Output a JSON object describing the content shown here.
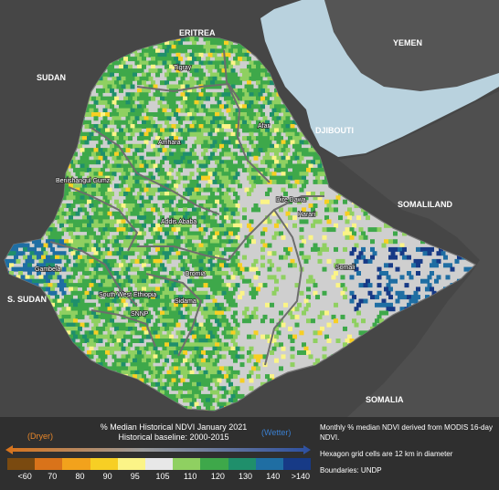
{
  "map": {
    "country_labels": {
      "eritrea": "ERITREA",
      "yemen": "YEMEN",
      "sudan": "SUDAN",
      "djibouti": "DJIBOUTI",
      "somaliland": "SOMALILAND",
      "s_sudan": "S. SUDAN",
      "somalia": "SOMALIA"
    },
    "region_labels": {
      "tigray": "Tigray",
      "afar": "Afar",
      "amhara": "Amhara",
      "benishangul": "Benishangul Gumz",
      "dire_dawa": "Dire Dawa",
      "harari": "Harari",
      "addis": "Addis Ababa",
      "gambela": "Gambela",
      "oromia": "Oromia",
      "somali": "Somali",
      "south_west": "South West Ethiopia",
      "sidama": "Sidama",
      "snnp": "SNNP"
    },
    "colors": {
      "land_other": "#4a4a4a",
      "water": "#b9d2de",
      "ethiopia_base": "#cfcfcf",
      "boundary": "#6d6d6d"
    }
  },
  "legend": {
    "title_line1": "% Median Historical NDVI January 2021",
    "title_line2": "Historical baseline: 2000-2015",
    "dryer": "(Dryer)",
    "wetter": "(Wetter)",
    "classes": [
      {
        "label": "<60",
        "color": "#7a4a10"
      },
      {
        "label": "70",
        "color": "#d9731a"
      },
      {
        "label": "80",
        "color": "#f2a21c"
      },
      {
        "label": "90",
        "color": "#f7cf24"
      },
      {
        "label": "95",
        "color": "#fbf487"
      },
      {
        "label": "105",
        "color": "#e8e8e8"
      },
      {
        "label": "110",
        "color": "#8fd061"
      },
      {
        "label": "120",
        "color": "#3ea84a"
      },
      {
        "label": "130",
        "color": "#1f8f6b"
      },
      {
        "label": "140",
        "color": "#1f6ea3"
      },
      {
        "label": ">140",
        "color": "#173a86"
      }
    ],
    "notes": [
      "Monthly % median NDVI derived from MODIS 16-day NDVI.",
      "Hexagon grid cells are 12 km in diameter",
      "Boundaries: UNDP"
    ]
  }
}
